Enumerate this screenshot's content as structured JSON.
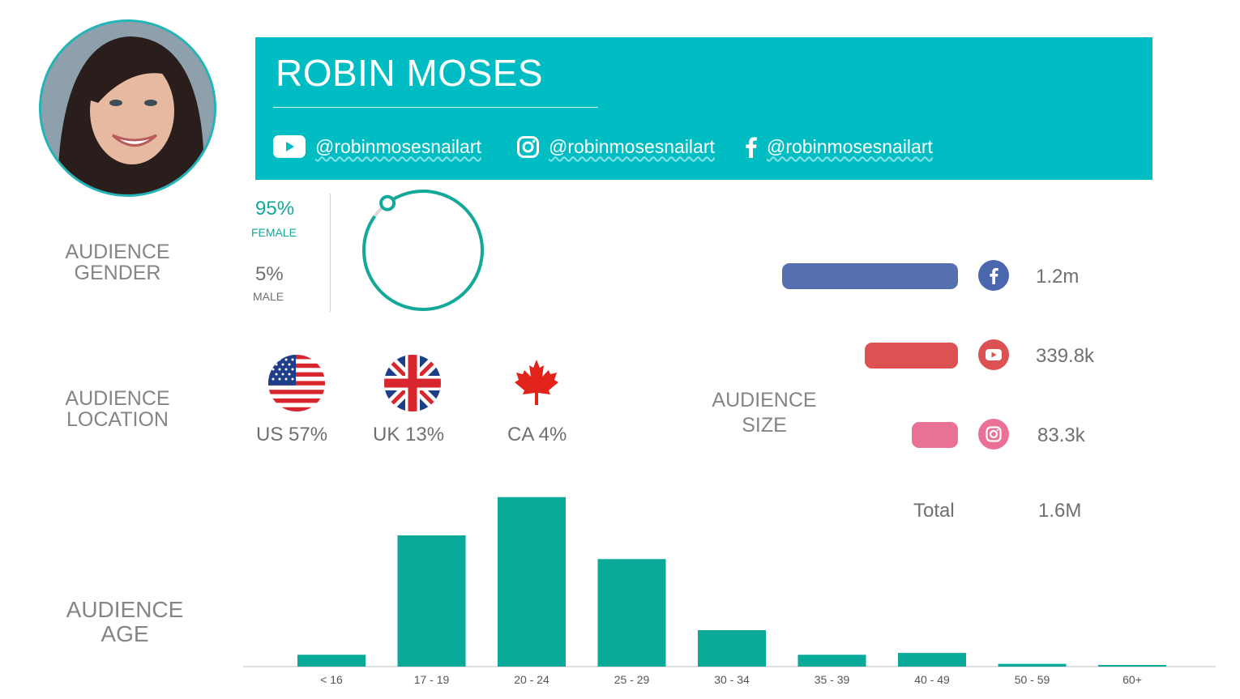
{
  "profile": {
    "name": "ROBIN MOSES",
    "handles": {
      "youtube": "@robinmosesnailart",
      "instagram": "@robinmosesnailart",
      "facebook": "@robinmosesnailart"
    }
  },
  "labels": {
    "gender_line1": "AUDIENCE",
    "gender_line2": "GENDER",
    "location_line1": "AUDIENCE",
    "location_line2": "LOCATION",
    "size_line1": "AUDIENCE",
    "size_line2": "SIZE",
    "age_line1": "AUDIENCE",
    "age_line2": "AGE"
  },
  "gender": {
    "female_pct": "95%",
    "female_label": "FEMALE",
    "male_pct": "5%",
    "male_label": "MALE",
    "female_fraction": 0.95
  },
  "location": [
    {
      "flag": "us-flag-icon",
      "label": "US 57%"
    },
    {
      "flag": "uk-flag-icon",
      "label": "UK 13%"
    },
    {
      "flag": "ca-flag-icon",
      "label": "CA 4%"
    }
  ],
  "audience_size": {
    "rows": [
      {
        "platform": "facebook",
        "icon": "facebook-icon",
        "value": "1.2m",
        "amount": 1200,
        "color": "#5470b0"
      },
      {
        "platform": "youtube",
        "icon": "youtube-icon",
        "value": "339.8k",
        "amount": 339.8,
        "color": "#dc5252"
      },
      {
        "platform": "instagram",
        "icon": "instagram-icon",
        "value": "83.3k",
        "amount": 83.3,
        "color": "#ea7196"
      }
    ],
    "total_label": "Total",
    "total_value": "1.6M"
  },
  "chart_data": {
    "type": "bar",
    "title": "",
    "xlabel": "",
    "ylabel": "",
    "categories": [
      "< 16",
      "17 - 19",
      "20 - 24",
      "25 - 29",
      "30 - 34",
      "35 - 39",
      "40 - 49",
      "50 - 59",
      "60+"
    ],
    "values": [
      6.5,
      72,
      93,
      59,
      20,
      6.5,
      7.5,
      1.5,
      0.8
    ],
    "ylim": [
      0,
      100
    ],
    "grid": false,
    "legend": "none",
    "bar_color": "#09aa9a"
  }
}
